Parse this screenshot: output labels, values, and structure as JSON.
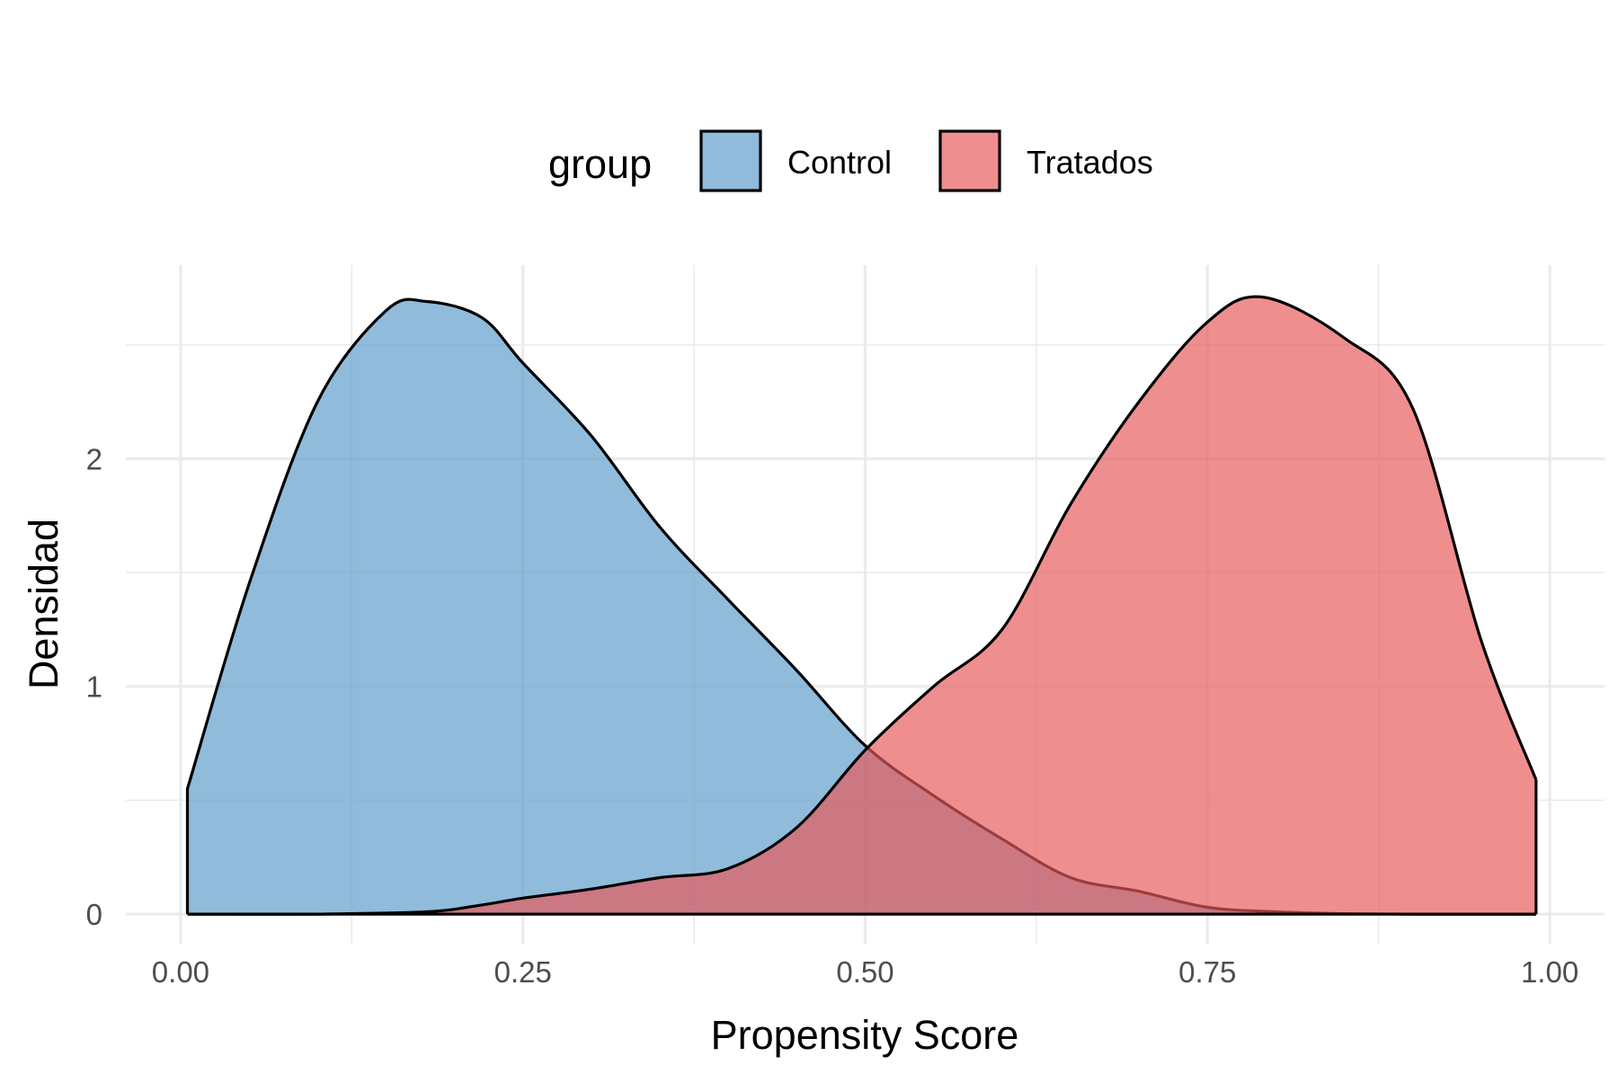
{
  "chart_data": {
    "type": "area",
    "subtype": "density",
    "xlabel": "Propensity Score",
    "ylabel": "Densidad",
    "xlim": [
      -0.04,
      1.04
    ],
    "ylim": [
      -0.13,
      2.85
    ],
    "x_ticks": [
      0.0,
      0.25,
      0.5,
      0.75,
      1.0
    ],
    "x_tick_labels": [
      "0.00",
      "0.25",
      "0.50",
      "0.75",
      "1.00"
    ],
    "y_ticks": [
      0,
      1,
      2
    ],
    "y_tick_labels": [
      "0",
      "1",
      "2"
    ],
    "grid": true,
    "legend": {
      "title": "group",
      "position": "top",
      "entries": [
        "Control",
        "Tratados"
      ]
    },
    "series": [
      {
        "name": "Control",
        "color": "#5b9bc8",
        "opacity": 0.68,
        "x": [
          0.005,
          0.05,
          0.1,
          0.15,
          0.18,
          0.22,
          0.25,
          0.3,
          0.35,
          0.4,
          0.45,
          0.5,
          0.55,
          0.6,
          0.65,
          0.7,
          0.75,
          0.8,
          0.85,
          0.9,
          0.95,
          0.99
        ],
        "y": [
          0.55,
          1.45,
          2.25,
          2.65,
          2.69,
          2.62,
          2.42,
          2.1,
          1.7,
          1.38,
          1.07,
          0.74,
          0.52,
          0.33,
          0.16,
          0.1,
          0.03,
          0.01,
          0.002,
          0.0,
          0.0,
          0.0
        ]
      },
      {
        "name": "Tratados",
        "color": "#e8585a",
        "opacity": 0.68,
        "x": [
          0.005,
          0.1,
          0.18,
          0.22,
          0.25,
          0.3,
          0.35,
          0.4,
          0.45,
          0.5,
          0.55,
          0.6,
          0.65,
          0.7,
          0.75,
          0.79,
          0.85,
          0.9,
          0.95,
          0.99
        ],
        "y": [
          0.0,
          0.0,
          0.01,
          0.04,
          0.07,
          0.11,
          0.16,
          0.2,
          0.38,
          0.72,
          1.0,
          1.25,
          1.8,
          2.25,
          2.6,
          2.71,
          2.53,
          2.22,
          1.2,
          0.59
        ]
      }
    ]
  }
}
